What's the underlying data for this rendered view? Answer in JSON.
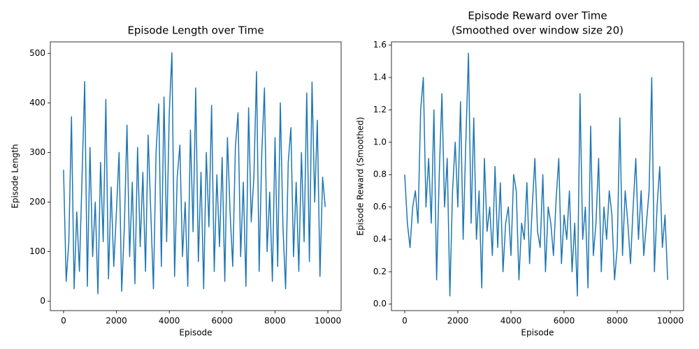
{
  "chart_data": [
    {
      "type": "line",
      "title": "Episode Length over Time",
      "xlabel": "Episode",
      "ylabel": "Episode Length",
      "color": "#1f77b4",
      "x": [
        0,
        100,
        200,
        300,
        400,
        500,
        600,
        700,
        800,
        900,
        1000,
        1100,
        1200,
        1300,
        1400,
        1500,
        1600,
        1700,
        1800,
        1900,
        2000,
        2100,
        2200,
        2300,
        2400,
        2500,
        2600,
        2700,
        2800,
        2900,
        3000,
        3100,
        3200,
        3300,
        3400,
        3500,
        3600,
        3700,
        3800,
        3900,
        4000,
        4100,
        4200,
        4300,
        4400,
        4500,
        4600,
        4700,
        4800,
        4900,
        5000,
        5100,
        5200,
        5300,
        5400,
        5500,
        5600,
        5700,
        5800,
        5900,
        6000,
        6100,
        6200,
        6300,
        6400,
        6500,
        6600,
        6700,
        6800,
        6900,
        7000,
        7100,
        7200,
        7300,
        7400,
        7500,
        7600,
        7700,
        7800,
        7900,
        8000,
        8100,
        8200,
        8300,
        8400,
        8500,
        8600,
        8700,
        8800,
        8900,
        9000,
        9100,
        9200,
        9300,
        9400,
        9500,
        9600,
        9700,
        9800,
        9900
      ],
      "values": [
        265,
        40,
        120,
        372,
        25,
        180,
        60,
        250,
        443,
        30,
        310,
        90,
        200,
        15,
        280,
        120,
        407,
        45,
        230,
        70,
        180,
        300,
        20,
        150,
        355,
        90,
        240,
        35,
        310,
        110,
        260,
        60,
        335,
        180,
        25,
        300,
        398,
        70,
        412,
        120,
        380,
        501,
        50,
        250,
        315,
        90,
        200,
        30,
        345,
        140,
        430,
        80,
        260,
        25,
        300,
        150,
        395,
        60,
        255,
        110,
        290,
        40,
        330,
        180,
        70,
        310,
        380,
        90,
        240,
        30,
        390,
        160,
        250,
        463,
        60,
        300,
        430,
        100,
        220,
        40,
        330,
        70,
        400,
        150,
        25,
        280,
        350,
        90,
        240,
        60,
        300,
        120,
        420,
        80,
        442,
        200,
        365,
        50,
        250,
        190
      ],
      "xlim": [
        -500,
        10500
      ],
      "ylim": [
        -19,
        523
      ],
      "xticks": [
        0,
        2000,
        4000,
        6000,
        8000,
        10000
      ],
      "yticks": [
        0,
        100,
        200,
        300,
        400,
        500
      ]
    },
    {
      "type": "line",
      "title": "Episode Reward over Time",
      "subtitle": "(Smoothed over window size 20)",
      "xlabel": "Episode",
      "ylabel": "Episode Reward (Smoothed)",
      "color": "#1f77b4",
      "x": [
        0,
        100,
        200,
        300,
        400,
        500,
        600,
        700,
        800,
        900,
        1000,
        1100,
        1200,
        1300,
        1400,
        1500,
        1600,
        1700,
        1800,
        1900,
        2000,
        2100,
        2200,
        2300,
        2400,
        2500,
        2600,
        2700,
        2800,
        2900,
        3000,
        3100,
        3200,
        3300,
        3400,
        3500,
        3600,
        3700,
        3800,
        3900,
        4000,
        4100,
        4200,
        4300,
        4400,
        4500,
        4600,
        4700,
        4800,
        4900,
        5000,
        5100,
        5200,
        5300,
        5400,
        5500,
        5600,
        5700,
        5800,
        5900,
        6000,
        6100,
        6200,
        6300,
        6400,
        6500,
        6600,
        6700,
        6800,
        6900,
        7000,
        7100,
        7200,
        7300,
        7400,
        7500,
        7600,
        7700,
        7800,
        7900,
        8000,
        8100,
        8200,
        8300,
        8400,
        8500,
        8600,
        8700,
        8800,
        8900,
        9000,
        9100,
        9200,
        9300,
        9400,
        9500,
        9600,
        9700,
        9800,
        9900
      ],
      "values": [
        0.8,
        0.5,
        0.35,
        0.6,
        0.7,
        0.5,
        1.2,
        1.4,
        0.6,
        0.9,
        0.5,
        1.2,
        0.15,
        0.8,
        1.3,
        0.6,
        0.9,
        0.05,
        0.7,
        1.0,
        0.6,
        1.25,
        0.4,
        1.0,
        1.55,
        0.5,
        1.15,
        0.4,
        0.7,
        0.1,
        0.9,
        0.45,
        0.6,
        0.3,
        0.85,
        0.35,
        0.75,
        0.2,
        0.5,
        0.6,
        0.3,
        0.8,
        0.7,
        0.15,
        0.5,
        0.4,
        0.75,
        0.25,
        0.6,
        0.9,
        0.45,
        0.35,
        0.8,
        0.2,
        0.6,
        0.5,
        0.3,
        0.65,
        0.9,
        0.25,
        0.55,
        0.4,
        0.7,
        0.2,
        0.5,
        0.05,
        1.3,
        0.4,
        0.6,
        0.1,
        1.1,
        0.3,
        0.5,
        0.9,
        0.2,
        0.6,
        0.4,
        0.7,
        0.55,
        0.15,
        0.35,
        1.15,
        0.3,
        0.7,
        0.5,
        0.25,
        0.6,
        0.9,
        0.4,
        0.7,
        0.3,
        0.5,
        0.7,
        1.4,
        0.2,
        0.6,
        0.85,
        0.35,
        0.55,
        0.15
      ],
      "xlim": [
        -500,
        10500
      ],
      "ylim": [
        -0.04,
        1.62
      ],
      "xticks": [
        0,
        2000,
        4000,
        6000,
        8000,
        10000
      ],
      "yticks": [
        {
          "value": 0,
          "label": "0.0"
        },
        0.2,
        0.4,
        0.6,
        0.8,
        {
          "value": 1,
          "label": "1.0"
        },
        1.2,
        1.4,
        1.6
      ]
    }
  ]
}
